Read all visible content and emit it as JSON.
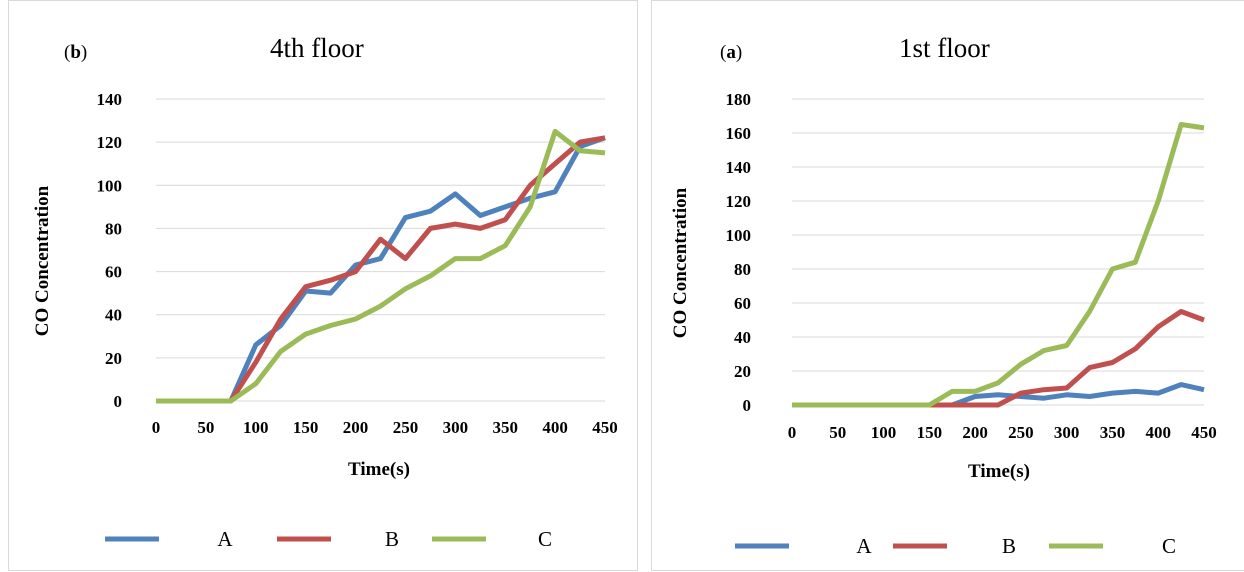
{
  "chart_data": [
    {
      "type": "line",
      "panel_label": "b",
      "title": "4th floor",
      "xlabel": "Time(s)",
      "ylabel": "CO  Concentration",
      "x": [
        0,
        25,
        50,
        75,
        100,
        125,
        150,
        175,
        200,
        225,
        250,
        275,
        300,
        325,
        350,
        375,
        400,
        425,
        450
      ],
      "xticks": [
        0,
        50,
        100,
        150,
        200,
        250,
        300,
        350,
        400,
        450
      ],
      "yticks": [
        0,
        20,
        40,
        60,
        80,
        100,
        120,
        140
      ],
      "ylim": [
        0,
        140
      ],
      "xlim": [
        0,
        450
      ],
      "grid": true,
      "legend_position": "bottom",
      "series": [
        {
          "name": "A",
          "color": "#4f81bd",
          "values": [
            0,
            0,
            0,
            0,
            26,
            35,
            51,
            50,
            63,
            66,
            85,
            88,
            96,
            86,
            90,
            94,
            97,
            118,
            122
          ]
        },
        {
          "name": "B",
          "color": "#c0504d",
          "values": [
            0,
            0,
            0,
            0,
            18,
            38,
            53,
            56,
            60,
            75,
            66,
            80,
            82,
            80,
            84,
            100,
            110,
            120,
            122
          ]
        },
        {
          "name": "C",
          "color": "#9bbb59",
          "values": [
            0,
            0,
            0,
            0,
            8,
            23,
            31,
            35,
            38,
            44,
            52,
            58,
            66,
            66,
            72,
            90,
            125,
            116,
            115
          ]
        }
      ]
    },
    {
      "type": "line",
      "panel_label": "a",
      "title": "1st floor",
      "xlabel": "Time(s)",
      "ylabel": "CO  Concentration",
      "x": [
        0,
        25,
        50,
        75,
        100,
        125,
        150,
        175,
        200,
        225,
        250,
        275,
        300,
        325,
        350,
        375,
        400,
        425,
        450
      ],
      "xticks": [
        0,
        50,
        100,
        150,
        200,
        250,
        300,
        350,
        400,
        450
      ],
      "yticks": [
        0,
        20,
        40,
        60,
        80,
        100,
        120,
        140,
        160,
        180
      ],
      "ylim": [
        0,
        180
      ],
      "xlim": [
        0,
        450
      ],
      "grid": true,
      "legend_position": "bottom",
      "series": [
        {
          "name": "A",
          "color": "#4f81bd",
          "values": [
            0,
            0,
            0,
            0,
            0,
            0,
            0,
            0,
            5,
            6,
            5,
            4,
            6,
            5,
            7,
            8,
            7,
            12,
            9
          ]
        },
        {
          "name": "B",
          "color": "#c0504d",
          "values": [
            0,
            0,
            0,
            0,
            0,
            0,
            0,
            0,
            0,
            0,
            7,
            9,
            10,
            22,
            25,
            33,
            46,
            55,
            50
          ]
        },
        {
          "name": "C",
          "color": "#9bbb59",
          "values": [
            0,
            0,
            0,
            0,
            0,
            0,
            0,
            8,
            8,
            13,
            24,
            32,
            35,
            55,
            80,
            84,
            120,
            165,
            163
          ]
        }
      ]
    }
  ]
}
